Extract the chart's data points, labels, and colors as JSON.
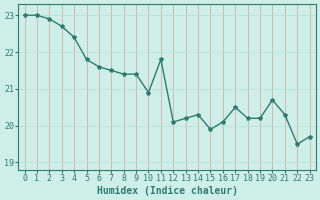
{
  "x": [
    0,
    1,
    2,
    3,
    4,
    5,
    6,
    7,
    8,
    9,
    10,
    11,
    12,
    13,
    14,
    15,
    16,
    17,
    18,
    19,
    20,
    21,
    22,
    23
  ],
  "y": [
    23.0,
    23.0,
    22.9,
    22.7,
    22.4,
    21.8,
    21.6,
    21.5,
    21.4,
    21.4,
    20.9,
    21.8,
    20.1,
    20.2,
    20.3,
    19.9,
    20.1,
    20.5,
    20.2,
    20.2,
    20.7,
    20.3,
    19.5,
    19.7
  ],
  "line_color": "#2d7d6e",
  "marker": "*",
  "marker_size": 3,
  "bg_color": "#ceeee8",
  "grid_color": "#b8ddd8",
  "xlabel": "Humidex (Indice chaleur)",
  "xlim": [
    -0.5,
    23.5
  ],
  "ylim": [
    18.8,
    23.3
  ],
  "yticks": [
    19,
    20,
    21,
    22,
    23
  ],
  "xticks": [
    0,
    1,
    2,
    3,
    4,
    5,
    6,
    7,
    8,
    9,
    10,
    11,
    12,
    13,
    14,
    15,
    16,
    17,
    18,
    19,
    20,
    21,
    22,
    23
  ],
  "tick_fontsize": 6,
  "xlabel_fontsize": 7,
  "spine_color": "#2d7d6e",
  "linewidth": 1.0
}
